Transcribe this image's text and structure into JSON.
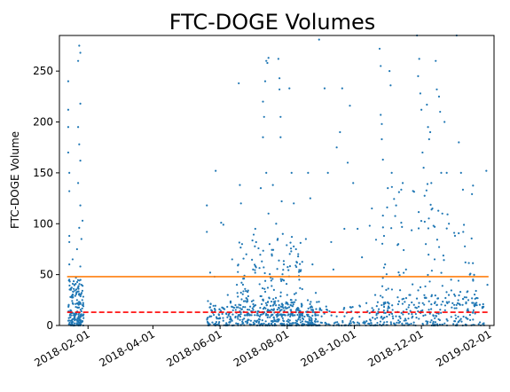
{
  "chart_data": {
    "type": "scatter",
    "title": "FTC-DOGE Volumes",
    "xlabel": "",
    "ylabel": "FTC-DOGE Volume",
    "x_type": "date",
    "xlim": [
      "2018-01-06",
      "2019-02-05"
    ],
    "ylim": [
      0,
      285
    ],
    "x_ticks": [
      "2018-02-01",
      "2018-04-01",
      "2018-06-01",
      "2018-08-01",
      "2018-10-01",
      "2018-12-01",
      "2019-02-01"
    ],
    "y_ticks": [
      0,
      50,
      100,
      150,
      200,
      250
    ],
    "grid": false,
    "legend": "none",
    "point_color": "#1f77b4",
    "reference_lines": [
      {
        "y": 48,
        "style": "solid",
        "color": "#ff7f0e",
        "x_range": [
          "2018-01-13",
          "2019-01-31"
        ]
      },
      {
        "y": 13,
        "style": "dashed",
        "color": "#ff0000",
        "x_range": [
          "2018-01-13",
          "2019-01-31"
        ]
      }
    ],
    "points": [
      [
        "2018-01-14",
        240
      ],
      [
        "2018-01-14",
        212
      ],
      [
        "2018-01-14",
        195
      ],
      [
        "2018-01-14",
        170
      ],
      [
        "2018-01-15",
        150
      ],
      [
        "2018-01-15",
        132
      ],
      [
        "2018-01-15",
        88
      ],
      [
        "2018-01-15",
        82
      ],
      [
        "2018-01-15",
        60
      ],
      [
        "2018-01-15",
        45
      ],
      [
        "2018-01-16",
        28
      ],
      [
        "2018-01-16",
        15
      ],
      [
        "2018-01-16",
        8
      ],
      [
        "2018-01-17",
        3
      ],
      [
        "2018-01-17",
        1
      ],
      [
        "2018-01-18",
        22
      ],
      [
        "2018-01-18",
        65
      ],
      [
        "2018-01-19",
        36
      ],
      [
        "2018-01-19",
        10
      ],
      [
        "2018-01-20",
        5
      ],
      [
        "2018-01-20",
        2
      ],
      [
        "2018-01-21",
        47
      ],
      [
        "2018-01-21",
        12
      ],
      [
        "2018-01-22",
        75
      ],
      [
        "2018-01-22",
        25
      ],
      [
        "2018-01-23",
        260
      ],
      [
        "2018-01-23",
        195
      ],
      [
        "2018-01-23",
        140
      ],
      [
        "2018-01-24",
        275
      ],
      [
        "2018-01-24",
        178
      ],
      [
        "2018-01-24",
        96
      ],
      [
        "2018-01-24",
        30
      ],
      [
        "2018-01-25",
        268
      ],
      [
        "2018-01-25",
        218
      ],
      [
        "2018-01-25",
        162
      ],
      [
        "2018-01-25",
        118
      ],
      [
        "2018-01-25",
        58
      ],
      [
        "2018-01-26",
        85
      ],
      [
        "2018-01-26",
        40
      ],
      [
        "2018-01-26",
        14
      ],
      [
        "2018-01-27",
        103
      ],
      [
        "2018-01-27",
        20
      ],
      [
        "2018-01-27",
        4
      ],
      [
        "2018-05-20",
        118
      ],
      [
        "2018-05-20",
        92
      ],
      [
        "2018-05-21",
        24
      ],
      [
        "2018-05-23",
        52
      ],
      [
        "2018-05-24",
        9
      ],
      [
        "2018-05-27",
        48
      ],
      [
        "2018-05-28",
        152
      ],
      [
        "2018-06-02",
        101
      ],
      [
        "2018-06-04",
        99
      ],
      [
        "2018-06-05",
        16
      ],
      [
        "2018-06-08",
        30
      ],
      [
        "2018-06-10",
        6
      ],
      [
        "2018-06-12",
        65
      ],
      [
        "2018-06-15",
        20
      ],
      [
        "2018-06-18",
        238
      ],
      [
        "2018-06-19",
        138
      ],
      [
        "2018-06-20",
        120
      ],
      [
        "2018-06-21",
        80
      ],
      [
        "2018-06-22",
        46
      ],
      [
        "2018-06-24",
        24
      ],
      [
        "2018-06-26",
        33
      ],
      [
        "2018-06-28",
        10
      ],
      [
        "2018-07-01",
        55
      ],
      [
        "2018-07-03",
        95
      ],
      [
        "2018-07-05",
        12
      ],
      [
        "2018-07-08",
        135
      ],
      [
        "2018-07-09",
        63
      ],
      [
        "2018-07-10",
        220
      ],
      [
        "2018-07-10",
        185
      ],
      [
        "2018-07-11",
        205
      ],
      [
        "2018-07-12",
        240
      ],
      [
        "2018-07-13",
        260
      ],
      [
        "2018-07-13",
        150
      ],
      [
        "2018-07-14",
        258
      ],
      [
        "2018-07-15",
        263
      ],
      [
        "2018-07-15",
        110
      ],
      [
        "2018-07-16",
        80
      ],
      [
        "2018-07-17",
        47
      ],
      [
        "2018-07-18",
        70
      ],
      [
        "2018-07-19",
        138
      ],
      [
        "2018-07-20",
        35
      ],
      [
        "2018-07-22",
        100
      ],
      [
        "2018-07-24",
        262
      ],
      [
        "2018-07-25",
        243
      ],
      [
        "2018-07-25",
        232
      ],
      [
        "2018-07-26",
        205
      ],
      [
        "2018-07-26",
        185
      ],
      [
        "2018-07-27",
        122
      ],
      [
        "2018-07-28",
        90
      ],
      [
        "2018-07-29",
        60
      ],
      [
        "2018-08-01",
        30
      ],
      [
        "2018-08-03",
        233
      ],
      [
        "2018-08-05",
        150
      ],
      [
        "2018-08-07",
        120
      ],
      [
        "2018-08-09",
        75
      ],
      [
        "2018-08-12",
        45
      ],
      [
        "2018-08-18",
        85
      ],
      [
        "2018-08-20",
        150
      ],
      [
        "2018-08-22",
        125
      ],
      [
        "2018-08-24",
        60
      ],
      [
        "2018-08-27",
        32
      ],
      [
        "2018-08-30",
        281
      ],
      [
        "2018-09-04",
        233
      ],
      [
        "2018-09-07",
        150
      ],
      [
        "2018-09-10",
        82
      ],
      [
        "2018-09-12",
        55
      ],
      [
        "2018-09-15",
        175
      ],
      [
        "2018-09-18",
        190
      ],
      [
        "2018-09-20",
        233
      ],
      [
        "2018-09-22",
        95
      ],
      [
        "2018-09-25",
        160
      ],
      [
        "2018-09-27",
        216
      ],
      [
        "2018-09-30",
        140
      ],
      [
        "2018-10-04",
        95
      ],
      [
        "2018-10-08",
        67
      ],
      [
        "2018-10-12",
        22
      ],
      [
        "2018-10-15",
        98
      ],
      [
        "2018-10-17",
        115
      ],
      [
        "2018-10-20",
        30
      ],
      [
        "2018-10-24",
        272
      ],
      [
        "2018-10-25",
        255
      ],
      [
        "2018-10-25",
        207
      ],
      [
        "2018-10-26",
        198
      ],
      [
        "2018-10-26",
        183
      ],
      [
        "2018-10-27",
        163
      ],
      [
        "2018-10-27",
        108
      ],
      [
        "2018-10-28",
        88
      ],
      [
        "2018-10-29",
        60
      ],
      [
        "2018-10-30",
        35
      ],
      [
        "2018-11-02",
        250
      ],
      [
        "2018-11-03",
        236
      ],
      [
        "2018-11-04",
        150
      ],
      [
        "2018-11-08",
        118
      ],
      [
        "2018-11-10",
        80
      ],
      [
        "2018-11-14",
        140
      ],
      [
        "2018-11-17",
        55
      ],
      [
        "2018-11-20",
        30
      ],
      [
        "2018-11-27",
        285
      ],
      [
        "2018-11-28",
        245
      ],
      [
        "2018-11-29",
        262
      ],
      [
        "2018-11-30",
        228
      ],
      [
        "2018-12-01",
        212
      ],
      [
        "2018-12-02",
        170
      ],
      [
        "2018-12-03",
        155
      ],
      [
        "2018-12-04",
        102
      ],
      [
        "2018-12-05",
        80
      ],
      [
        "2018-12-06",
        217
      ],
      [
        "2018-12-07",
        195
      ],
      [
        "2018-12-08",
        183
      ],
      [
        "2018-12-09",
        190
      ],
      [
        "2018-12-10",
        140
      ],
      [
        "2018-12-11",
        115
      ],
      [
        "2018-12-12",
        98
      ],
      [
        "2018-12-13",
        65
      ],
      [
        "2018-12-14",
        260
      ],
      [
        "2018-12-15",
        232
      ],
      [
        "2018-12-17",
        225
      ],
      [
        "2018-12-18",
        210
      ],
      [
        "2018-12-19",
        150
      ],
      [
        "2018-12-20",
        110
      ],
      [
        "2018-12-22",
        200
      ],
      [
        "2018-12-24",
        150
      ],
      [
        "2018-12-26",
        100
      ],
      [
        "2018-12-28",
        45
      ],
      [
        "2019-01-02",
        285
      ],
      [
        "2019-01-04",
        180
      ],
      [
        "2019-01-06",
        150
      ],
      [
        "2019-01-08",
        92
      ],
      [
        "2019-01-10",
        62
      ],
      [
        "2019-01-14",
        50
      ],
      [
        "2019-01-17",
        44
      ],
      [
        "2019-01-20",
        27
      ],
      [
        "2019-01-29",
        152
      ],
      [
        "2019-01-30",
        40
      ]
    ],
    "dense_clusters": [
      {
        "x_range": [
          "2018-01-14",
          "2018-01-28"
        ],
        "y_range": [
          0,
          45
        ],
        "count": 170
      },
      {
        "x_range": [
          "2018-05-20",
          "2018-08-31"
        ],
        "y_range": [
          0,
          25
        ],
        "count": 360
      },
      {
        "x_range": [
          "2018-06-15",
          "2018-08-15"
        ],
        "y_range": [
          10,
          90
        ],
        "count": 200
      },
      {
        "x_range": [
          "2018-08-01",
          "2018-10-20"
        ],
        "y_range": [
          0,
          20
        ],
        "count": 140
      },
      {
        "x_range": [
          "2018-10-20",
          "2019-01-28"
        ],
        "y_range": [
          0,
          30
        ],
        "count": 240
      },
      {
        "x_range": [
          "2018-10-20",
          "2019-01-20"
        ],
        "y_range": [
          20,
          140
        ],
        "count": 110
      }
    ]
  }
}
